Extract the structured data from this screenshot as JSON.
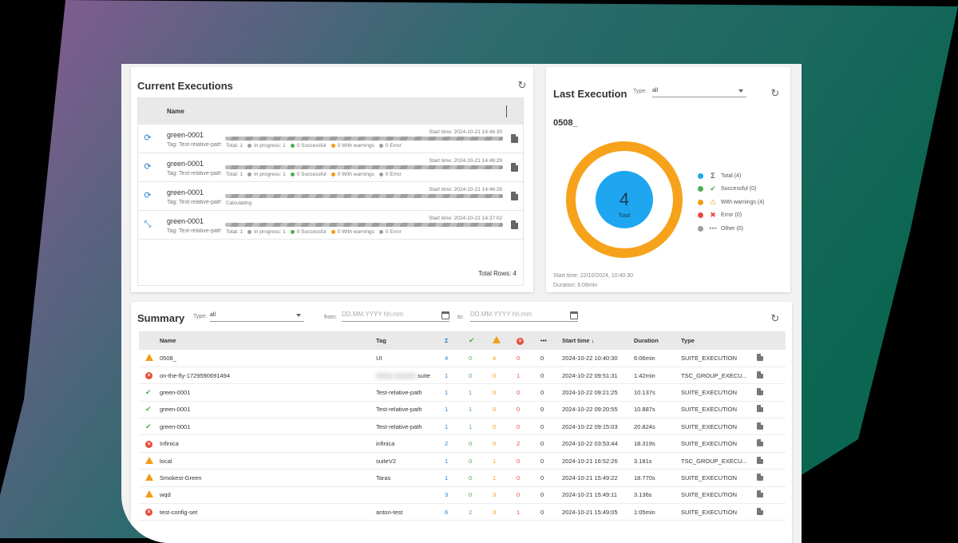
{
  "current": {
    "title": "Current Executions",
    "col_name": "Name",
    "total_rows": "Total Rows: 4",
    "rows": [
      {
        "name": "green-0001",
        "tag": "Tag: Test-relative-path",
        "start": "Start time: 2024-10-21 14:46:30",
        "status": "running",
        "calculating": "",
        "total": "Total: 1",
        "in_progress": "In progress: 1",
        "successful": "0 Successful",
        "warnings": "0 With warnings",
        "error": "0 Error"
      },
      {
        "name": "green-0001",
        "tag": "Tag: Test-relative-path",
        "start": "Start time: 2024-10-21 14:46:29",
        "status": "running",
        "calculating": "",
        "total": "Total: 1",
        "in_progress": "In progress: 1",
        "successful": "0 Successful",
        "warnings": "0 With warnings",
        "error": "0 Error"
      },
      {
        "name": "green-0001",
        "tag": "Tag: Test-relative-path",
        "start": "Start time: 2024-10-21 14:46:29",
        "status": "running",
        "calculating": "Calculating",
        "total": "",
        "in_progress": "",
        "successful": "",
        "warnings": "",
        "error": ""
      },
      {
        "name": "green-0001",
        "tag": "Tag: Test-relative-path",
        "start": "Start time: 2024-10-21 14:37:02",
        "status": "pending",
        "calculating": "",
        "total": "Total: 1",
        "in_progress": "In progress: 1",
        "successful": "0 Successful",
        "warnings": "0 With warnings",
        "error": "0 Error"
      }
    ]
  },
  "last": {
    "title": "Last Execution",
    "type_label": "Type:",
    "type_value": "all",
    "exec_name": "0508_",
    "donut_value": "4",
    "donut_label": "Total",
    "legend": [
      {
        "label": "Total (4)",
        "color": "#1ea7f0",
        "icon": "sigma-icon",
        "glyph": "Σ"
      },
      {
        "label": "Successful (0)",
        "color": "#4caf50",
        "icon": "double-check-icon",
        "glyph": "✔"
      },
      {
        "label": "With warnings (4)",
        "color": "#f39c12",
        "icon": "warning-icon",
        "glyph": "⚠"
      },
      {
        "label": "Error (0)",
        "color": "#e74c3c",
        "icon": "error-icon",
        "glyph": "✖"
      },
      {
        "label": "Other (0)",
        "color": "#9e9e9e",
        "icon": "more-icon",
        "glyph": "•••"
      }
    ],
    "start_time": "Start time: 22/10/2024, 10:40:30",
    "duration": "Duration: 6:06min",
    "colors": {
      "total": "#1ea7f0",
      "warnings_ring": "#f7a21b"
    }
  },
  "summary": {
    "title": "Summary",
    "type_label": "Type:",
    "type_value": "all",
    "from_label": "from:",
    "to_label": "to:",
    "date_placeholder": "DD.MM.YYYY hh:mm",
    "headers": {
      "name": "Name",
      "tag": "Tag",
      "total": "Σ",
      "other": "•••",
      "start": "Start time ↓",
      "duration": "Duration",
      "type": "Type"
    },
    "rows": [
      {
        "status": "warn",
        "name": "0508_",
        "tag": "UI",
        "total": "4",
        "ok": "0",
        "warn": "4",
        "err": "0",
        "other": "0",
        "start": "2024-10-22 10:40:30",
        "duration": "6:06min",
        "type": "SUITE_EXECUTION"
      },
      {
        "status": "err",
        "name": "on-the-fly-1729590691494",
        "tag": "suite",
        "total": "1",
        "ok": "0",
        "warn": "0",
        "err": "1",
        "other": "0",
        "start": "2024-10-22 09:51:31",
        "duration": "1:42min",
        "type": "TSC_GROUP_EXECU..."
      },
      {
        "status": "ok",
        "name": "green-0001",
        "tag": "Test-relative-path",
        "total": "1",
        "ok": "1",
        "warn": "0",
        "err": "0",
        "other": "0",
        "start": "2024-10-22 09:21:25",
        "duration": "10.137s",
        "type": "SUITE_EXECUTION"
      },
      {
        "status": "ok",
        "name": "green-0001",
        "tag": "Test-relative-path",
        "total": "1",
        "ok": "1",
        "warn": "0",
        "err": "0",
        "other": "0",
        "start": "2024-10-22 09:20:55",
        "duration": "10.887s",
        "type": "SUITE_EXECUTION"
      },
      {
        "status": "ok",
        "name": "green-0001",
        "tag": "Test-relative-path",
        "total": "1",
        "ok": "1",
        "warn": "0",
        "err": "0",
        "other": "0",
        "start": "2024-10-22 09:15:03",
        "duration": "20.824s",
        "type": "SUITE_EXECUTION"
      },
      {
        "status": "err",
        "name": "Infinica",
        "tag": "infinica",
        "total": "2",
        "ok": "0",
        "warn": "0",
        "err": "2",
        "other": "0",
        "start": "2024-10-22 03:53:44",
        "duration": "18.319s",
        "type": "SUITE_EXECUTION"
      },
      {
        "status": "warn",
        "name": "local",
        "tag": "suiteV2",
        "total": "1",
        "ok": "0",
        "warn": "1",
        "err": "0",
        "other": "0",
        "start": "2024-10-21 16:52:26",
        "duration": "3.181s",
        "type": "TSC_GROUP_EXECU..."
      },
      {
        "status": "warn",
        "name": "Smokest-Green",
        "tag": "Taras",
        "total": "1",
        "ok": "0",
        "warn": "1",
        "err": "0",
        "other": "0",
        "start": "2024-10-21 15:49:22",
        "duration": "18.770s",
        "type": "SUITE_EXECUTION"
      },
      {
        "status": "warn",
        "name": "wqd",
        "tag": "",
        "total": "3",
        "ok": "0",
        "warn": "3",
        "err": "0",
        "other": "0",
        "start": "2024-10-21 15:49:11",
        "duration": "3.136s",
        "type": "SUITE_EXECUTION"
      },
      {
        "status": "err",
        "name": "test-config-set",
        "tag": "anton-test",
        "total": "6",
        "ok": "2",
        "warn": "3",
        "err": "1",
        "other": "0",
        "start": "2024-10-21 15:49:05",
        "duration": "1:05min",
        "type": "SUITE_EXECUTION"
      }
    ]
  }
}
